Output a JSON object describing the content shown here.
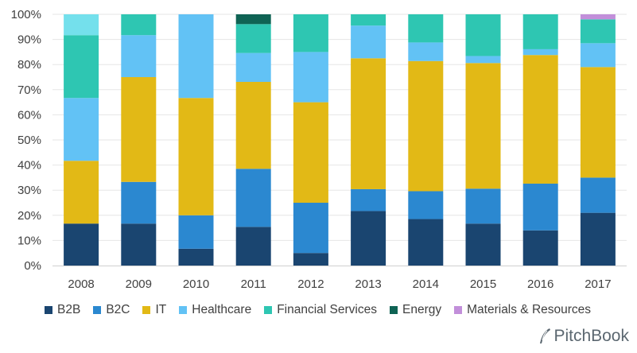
{
  "chart_data": {
    "type": "bar",
    "stacked": true,
    "categories": [
      "2008",
      "2009",
      "2010",
      "2011",
      "2012",
      "2013",
      "2014",
      "2015",
      "2016",
      "2017"
    ],
    "y_ticks": [
      "0%",
      "10%",
      "20%",
      "30%",
      "40%",
      "50%",
      "60%",
      "70%",
      "80%",
      "90%",
      "100%"
    ],
    "ylim": [
      0,
      100
    ],
    "legend_position": "bottom",
    "series": [
      {
        "name": "B2B",
        "color": "#1a4570",
        "values": [
          16.7,
          16.7,
          6.7,
          15.4,
          5.0,
          21.7,
          18.5,
          16.7,
          14.0,
          21.0
        ]
      },
      {
        "name": "B2C",
        "color": "#2b88d0",
        "values": [
          0,
          16.6,
          13.3,
          23.1,
          20.0,
          8.7,
          11.1,
          13.9,
          18.6,
          14.0
        ]
      },
      {
        "name": "IT",
        "color": "#e2b916",
        "values": [
          25.0,
          41.7,
          46.7,
          34.6,
          40.0,
          52.1,
          51.8,
          50.0,
          51.2,
          44.0
        ]
      },
      {
        "name": "Healthcare",
        "color": "#62c2f5",
        "values": [
          25.0,
          16.7,
          33.3,
          11.5,
          20.0,
          13.0,
          7.4,
          2.8,
          2.3,
          9.5
        ]
      },
      {
        "name": "Financial Services",
        "color": "#2ec6b2",
        "values": [
          25.0,
          8.3,
          0,
          11.5,
          15.0,
          4.5,
          11.2,
          16.6,
          13.9,
          9.5
        ]
      },
      {
        "name": "Energy",
        "color": "#0f6354",
        "values": [
          0,
          0,
          0,
          3.9,
          0,
          0,
          0,
          0,
          0,
          0
        ]
      },
      {
        "name": "Materials & Resources",
        "color": "#c28fda",
        "values": [
          0,
          0,
          0,
          0,
          0,
          0,
          0,
          0,
          0,
          2.0
        ]
      },
      {
        "name": "",
        "color": "#74e0ec",
        "values": [
          8.3,
          0,
          0,
          0,
          0,
          0,
          0,
          0,
          0,
          0
        ]
      }
    ]
  },
  "legend": [
    {
      "label": "B2B",
      "color": "#1a4570"
    },
    {
      "label": "B2C",
      "color": "#2b88d0"
    },
    {
      "label": "IT",
      "color": "#e2b916"
    },
    {
      "label": "Healthcare",
      "color": "#62c2f5"
    },
    {
      "label": "Financial Services",
      "color": "#2ec6b2"
    },
    {
      "label": "Energy",
      "color": "#0f6354"
    },
    {
      "label": "Materials & Resources",
      "color": "#c28fda"
    }
  ],
  "brand": {
    "name": "PitchBook",
    "color": "#5b6770"
  }
}
